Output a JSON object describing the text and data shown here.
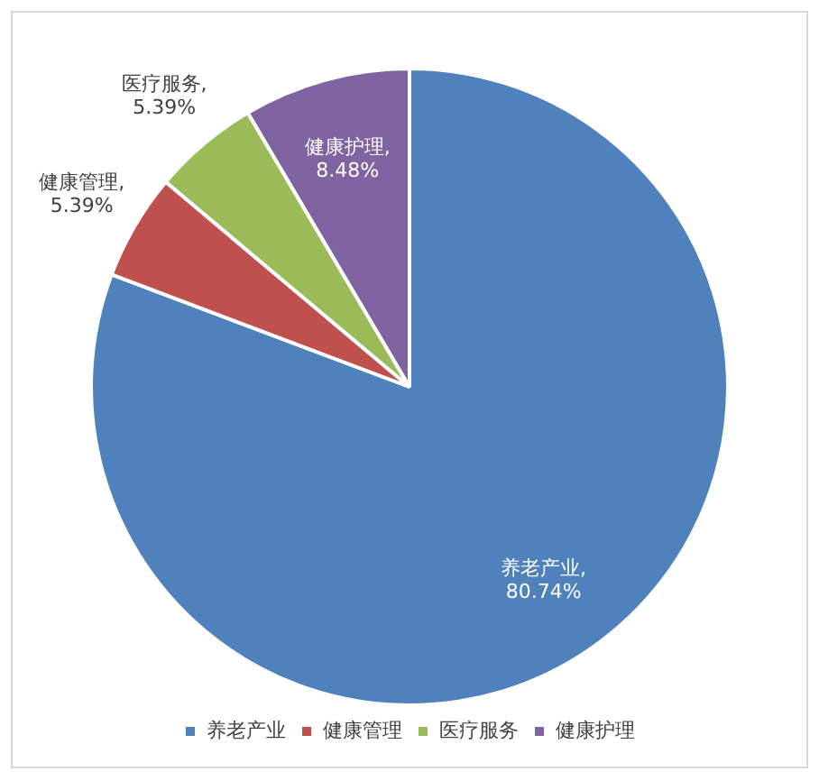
{
  "chart_data": {
    "type": "pie",
    "categories": [
      "养老产业",
      "健康管理",
      "医疗服务",
      "健康护理"
    ],
    "values": [
      80.74,
      5.39,
      5.39,
      8.48
    ],
    "colors": [
      "#4f81bd",
      "#c0504d",
      "#9bbb59",
      "#8064a2"
    ],
    "value_labels": [
      "养老产业,\n80.74%",
      "健康管理,\n5.39%",
      "医疗服务,\n5.39%",
      "健康护理,\n8.48%"
    ],
    "legend": "bottom"
  }
}
